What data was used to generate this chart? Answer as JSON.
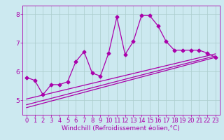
{
  "background_color": "#cce9f0",
  "line_color": "#aa00aa",
  "grid_color": "#aacccc",
  "xlabel": "Windchill (Refroidissement éolien,°C)",
  "xlim": [
    -0.5,
    23.5
  ],
  "ylim": [
    4.5,
    8.3
  ],
  "yticks": [
    5,
    6,
    7,
    8
  ],
  "xticks": [
    0,
    1,
    2,
    3,
    4,
    5,
    6,
    7,
    8,
    9,
    10,
    11,
    12,
    13,
    14,
    15,
    16,
    17,
    18,
    19,
    20,
    21,
    22,
    23
  ],
  "line1_x": [
    0,
    1,
    2,
    3,
    4,
    5,
    6,
    7,
    8,
    9,
    10,
    11,
    12,
    13,
    14,
    15,
    16,
    17,
    18,
    19,
    20,
    21,
    22,
    23
  ],
  "line1_y": [
    5.8,
    5.7,
    5.2,
    5.55,
    5.55,
    5.65,
    6.35,
    6.7,
    5.95,
    5.85,
    6.65,
    7.9,
    6.6,
    7.05,
    7.95,
    7.95,
    7.6,
    7.05,
    6.75,
    6.75,
    6.75,
    6.75,
    6.65,
    6.5
  ],
  "line2_x": [
    0,
    23
  ],
  "line2_y": [
    4.75,
    6.5
  ],
  "line3_x": [
    0,
    23
  ],
  "line3_y": [
    4.85,
    6.55
  ],
  "line4_x": [
    0,
    23
  ],
  "line4_y": [
    5.05,
    6.62
  ],
  "marker": "D",
  "markersize": 2.5,
  "linewidth": 0.9,
  "xlabel_fontsize": 6.5,
  "tick_fontsize": 6.0
}
